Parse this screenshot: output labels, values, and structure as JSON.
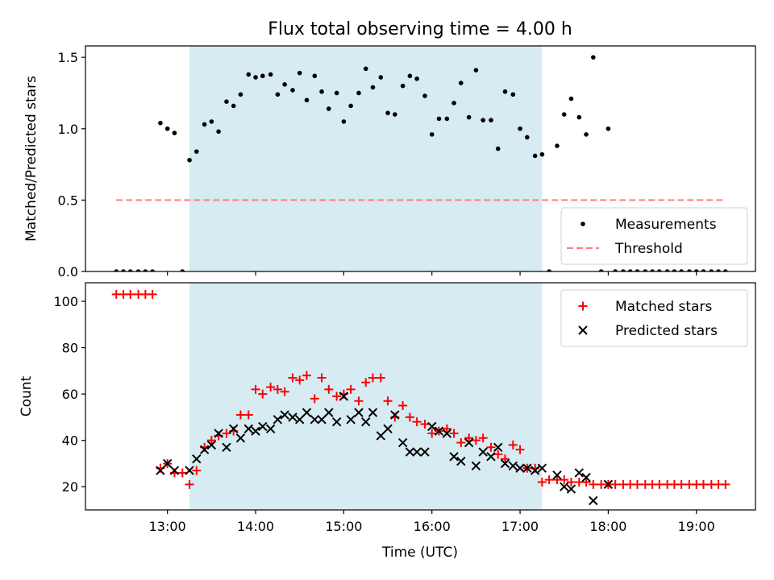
{
  "figure": {
    "title": "Flux total observing time = 4.00 h",
    "xlabel": "Time (UTC)",
    "x_ticks": [
      {
        "value": 13.0,
        "label": "13:00"
      },
      {
        "value": 14.0,
        "label": "14:00"
      },
      {
        "value": 15.0,
        "label": "15:00"
      },
      {
        "value": 16.0,
        "label": "16:00"
      },
      {
        "value": 17.0,
        "label": "17:00"
      },
      {
        "value": 18.0,
        "label": "18:00"
      },
      {
        "value": 19.0,
        "label": "19:00"
      }
    ],
    "xlim": [
      12.07,
      19.67
    ],
    "shaded_interval": [
      13.25,
      17.25
    ],
    "shade_color": "#add8e6",
    "colors": {
      "measurements": "#000000",
      "threshold": "#ff7f7f",
      "matched": "#ff0000",
      "predicted": "#000000"
    }
  },
  "chart_data": [
    {
      "type": "scatter",
      "ylabel": "Matched/Predicted stars",
      "ylim": [
        0,
        1.58
      ],
      "y_ticks": [
        {
          "value": 0.0,
          "label": "0.0"
        },
        {
          "value": 0.5,
          "label": "0.5"
        },
        {
          "value": 1.0,
          "label": "1.0"
        },
        {
          "value": 1.5,
          "label": "1.5"
        }
      ],
      "legend_position": "lower-right",
      "threshold": {
        "name": "Threshold",
        "value": 0.5,
        "x_range": [
          12.42,
          19.33
        ]
      },
      "series": [
        {
          "name": "Measurements",
          "x": [
            12.42,
            12.5,
            12.58,
            12.67,
            12.75,
            12.83,
            12.92,
            13.0,
            13.08,
            13.17,
            13.25,
            13.33,
            13.42,
            13.5,
            13.58,
            13.67,
            13.75,
            13.83,
            13.92,
            14.0,
            14.08,
            14.17,
            14.25,
            14.33,
            14.42,
            14.5,
            14.58,
            14.67,
            14.75,
            14.83,
            14.92,
            15.0,
            15.08,
            15.17,
            15.25,
            15.33,
            15.42,
            15.5,
            15.58,
            15.67,
            15.75,
            15.83,
            15.92,
            16.0,
            16.08,
            16.17,
            16.25,
            16.33,
            16.42,
            16.5,
            16.58,
            16.67,
            16.75,
            16.83,
            16.92,
            17.0,
            17.08,
            17.17,
            17.25,
            17.33,
            17.42,
            17.5,
            17.58,
            17.67,
            17.75,
            17.83,
            17.92,
            18.0,
            18.08,
            18.17,
            18.25,
            18.33,
            18.42,
            18.5,
            18.58,
            18.67,
            18.75,
            18.83,
            18.92,
            19.0,
            19.08,
            19.17,
            19.25,
            19.33
          ],
          "y": [
            0,
            0,
            0,
            0,
            0,
            0,
            1.04,
            1.0,
            0.97,
            0,
            0.78,
            0.84,
            1.03,
            1.05,
            0.98,
            1.19,
            1.16,
            1.24,
            1.38,
            1.36,
            1.37,
            1.38,
            1.24,
            1.31,
            1.27,
            1.39,
            1.2,
            1.37,
            1.26,
            1.14,
            1.25,
            1.05,
            1.16,
            1.25,
            1.42,
            1.29,
            1.36,
            1.11,
            1.1,
            1.3,
            1.37,
            1.35,
            1.23,
            0.96,
            1.07,
            1.07,
            1.18,
            1.32,
            1.08,
            1.41,
            1.06,
            1.06,
            0.86,
            1.26,
            1.24,
            1.0,
            0.94,
            0.81,
            0.82,
            0,
            0.88,
            1.1,
            1.21,
            1.08,
            0.96,
            1.5,
            0,
            1.0,
            0,
            0,
            0,
            0,
            0,
            0,
            0,
            0,
            0,
            0,
            0,
            0,
            0,
            0,
            0,
            0
          ]
        }
      ]
    },
    {
      "type": "scatter",
      "ylabel": "Count",
      "ylim": [
        10,
        108
      ],
      "y_ticks": [
        {
          "value": 20,
          "label": "20"
        },
        {
          "value": 40,
          "label": "40"
        },
        {
          "value": 60,
          "label": "60"
        },
        {
          "value": 80,
          "label": "80"
        },
        {
          "value": 100,
          "label": "100"
        }
      ],
      "legend_position": "top-right",
      "series": [
        {
          "name": "Matched stars",
          "marker": "plus",
          "x": [
            12.42,
            12.5,
            12.58,
            12.67,
            12.75,
            12.83,
            12.92,
            13.0,
            13.08,
            13.17,
            13.25,
            13.33,
            13.42,
            13.5,
            13.58,
            13.67,
            13.75,
            13.83,
            13.92,
            14.0,
            14.08,
            14.17,
            14.25,
            14.33,
            14.42,
            14.5,
            14.58,
            14.67,
            14.75,
            14.83,
            14.92,
            15.0,
            15.08,
            15.17,
            15.25,
            15.33,
            15.42,
            15.5,
            15.58,
            15.67,
            15.75,
            15.83,
            15.92,
            16.0,
            16.08,
            16.17,
            16.25,
            16.33,
            16.42,
            16.5,
            16.58,
            16.67,
            16.75,
            16.83,
            16.92,
            17.0,
            17.08,
            17.17,
            17.25,
            17.33,
            17.42,
            17.5,
            17.58,
            17.67,
            17.75,
            17.83,
            17.92,
            18.0,
            18.08,
            18.17,
            18.25,
            18.33,
            18.42,
            18.5,
            18.58,
            18.67,
            18.75,
            18.83,
            18.92,
            19.0,
            19.08,
            19.17,
            19.25,
            19.33
          ],
          "y": [
            103,
            103,
            103,
            103,
            103,
            103,
            28,
            30,
            26,
            26,
            21,
            27,
            37,
            40,
            42,
            43,
            44,
            51,
            51,
            62,
            60,
            63,
            62,
            61,
            67,
            66,
            68,
            58,
            67,
            62,
            59,
            60,
            62,
            57,
            65,
            67,
            67,
            57,
            50,
            55,
            50,
            48,
            47,
            43,
            44,
            45,
            43,
            39,
            41,
            40,
            41,
            37,
            34,
            32,
            38,
            36,
            28,
            28,
            22,
            23,
            23,
            23,
            22,
            22,
            22,
            21,
            21,
            21,
            21,
            21,
            21,
            21,
            21,
            21,
            21,
            21,
            21,
            21,
            21,
            21,
            21,
            21,
            21,
            21
          ]
        },
        {
          "name": "Predicted stars",
          "marker": "x",
          "x": [
            12.92,
            13.0,
            13.08,
            13.25,
            13.33,
            13.42,
            13.5,
            13.58,
            13.67,
            13.75,
            13.83,
            13.92,
            14.0,
            14.08,
            14.17,
            14.25,
            14.33,
            14.42,
            14.5,
            14.58,
            14.67,
            14.75,
            14.83,
            14.92,
            15.0,
            15.08,
            15.17,
            15.25,
            15.33,
            15.42,
            15.5,
            15.58,
            15.67,
            15.75,
            15.83,
            15.92,
            16.0,
            16.08,
            16.17,
            16.25,
            16.33,
            16.42,
            16.5,
            16.58,
            16.67,
            16.75,
            16.83,
            16.92,
            17.0,
            17.08,
            17.17,
            17.25,
            17.42,
            17.5,
            17.58,
            17.67,
            17.75,
            17.83,
            18.0
          ],
          "y": [
            27,
            30,
            27,
            27,
            32,
            36,
            38,
            43,
            37,
            45,
            41,
            45,
            44,
            46,
            45,
            49,
            51,
            50,
            49,
            52,
            49,
            49,
            52,
            48,
            59,
            49,
            52,
            48,
            52,
            42,
            45,
            51,
            39,
            35,
            35,
            35,
            46,
            44,
            43,
            33,
            31,
            39,
            29,
            35,
            33,
            37,
            30,
            29,
            28,
            28,
            27,
            28,
            25,
            20,
            19,
            26,
            24,
            14,
            21
          ]
        }
      ]
    }
  ]
}
